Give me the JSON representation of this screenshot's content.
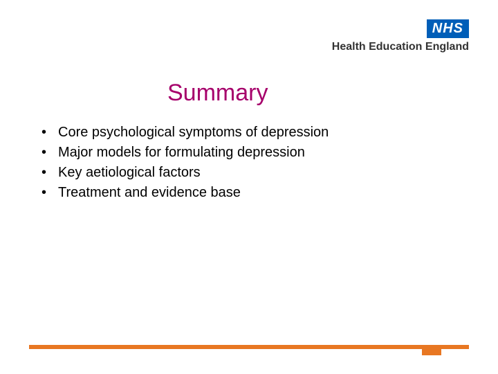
{
  "logo": {
    "nhs": "NHS",
    "subtitle": "Health Education England"
  },
  "title": "Summary",
  "bullets": [
    "Core psychological symptoms of depression",
    "Major models for formulating depression",
    "Key aetiological factors",
    "Treatment and evidence base"
  ],
  "colors": {
    "title": "#a6006b",
    "nhs_blue": "#005eb8",
    "accent_orange": "#e87722",
    "text": "#000000",
    "background": "#ffffff"
  },
  "typography": {
    "title_fontsize": 34,
    "bullet_fontsize": 20,
    "hee_fontsize": 16
  }
}
